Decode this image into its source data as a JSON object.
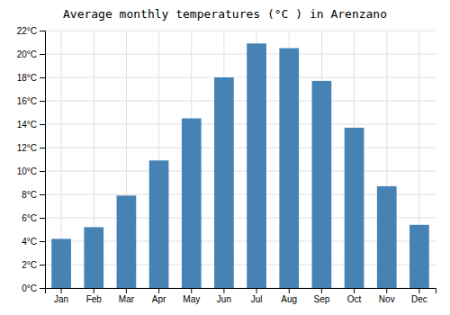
{
  "chart_data": {
    "type": "bar",
    "title": "Average monthly temperatures (°C ) in Arenzano",
    "categories": [
      "Jan",
      "Feb",
      "Mar",
      "Apr",
      "May",
      "Jun",
      "Jul",
      "Aug",
      "Sep",
      "Oct",
      "Nov",
      "Dec"
    ],
    "values": [
      4.2,
      5.2,
      7.9,
      10.9,
      14.5,
      18.0,
      20.9,
      20.5,
      17.7,
      13.7,
      8.7,
      5.4
    ],
    "ylim": [
      0,
      22
    ],
    "yticks": [
      {
        "value": 0,
        "label": "0°C"
      },
      {
        "value": 2,
        "label": "2°C"
      },
      {
        "value": 4,
        "label": "4°C"
      },
      {
        "value": 6,
        "label": "6°C"
      },
      {
        "value": 8,
        "label": "8°C"
      },
      {
        "value": 10,
        "label": "10°C"
      },
      {
        "value": 12,
        "label": "12°C"
      },
      {
        "value": 14,
        "label": "14°C"
      },
      {
        "value": 16,
        "label": "16°C"
      },
      {
        "value": 18,
        "label": "18°C"
      },
      {
        "value": 20,
        "label": "20°C"
      },
      {
        "value": 22,
        "label": "22°C"
      }
    ],
    "grid": true
  }
}
